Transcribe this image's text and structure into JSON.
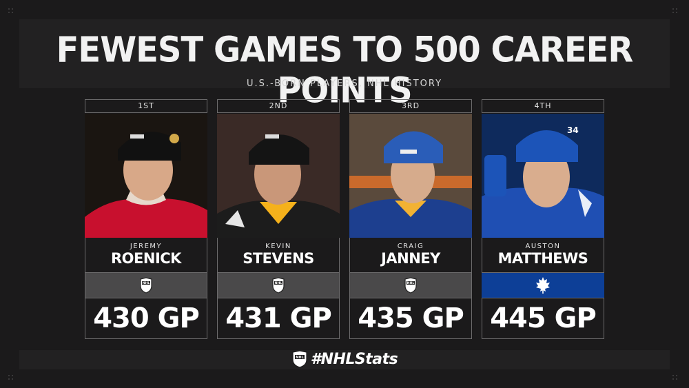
{
  "title": "FEWEST GAMES TO 500 CAREER POINTS",
  "subtitle": "U.S.-BORN PLAYERS, NHL HISTORY",
  "players": [
    {
      "rank": "1ST",
      "first": "JEREMY",
      "last": "ROENICK",
      "gp": "430 GP",
      "team_logo": "nhl-shield-icon",
      "jersey": "#c8102e",
      "helmet": "#111111",
      "bg": "#1a1511"
    },
    {
      "rank": "2ND",
      "first": "KEVIN",
      "last": "STEVENS",
      "gp": "431 GP",
      "team_logo": "nhl-shield-icon",
      "jersey": "#1c1c1c",
      "helmet": "#141414",
      "bg": "#3a2a26"
    },
    {
      "rank": "3RD",
      "first": "CRAIG",
      "last": "JANNEY",
      "gp": "435 GP",
      "team_logo": "nhl-shield-icon",
      "jersey": "#1d3f8f",
      "helmet": "#2a5db8",
      "bg": "#5a4a3c"
    },
    {
      "rank": "4TH",
      "first": "AUSTON",
      "last": "MATTHEWS",
      "gp": "445 GP",
      "team_logo": "maple-leaf-icon",
      "jersey": "#1f4fb3",
      "helmet": "#1c54b8",
      "bg": "#0e2a5c"
    }
  ],
  "footer": {
    "hashtag": "#NHLStats",
    "logo": "nhl-shield-icon"
  }
}
